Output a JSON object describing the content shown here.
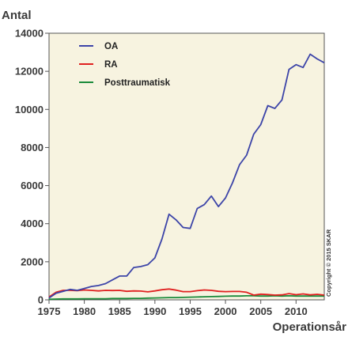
{
  "chart_data": {
    "type": "line",
    "ylabel": "Antal",
    "xlabel": "Operationsår",
    "xlim": [
      1975,
      2014
    ],
    "ylim": [
      0,
      14000
    ],
    "x_ticks": [
      1975,
      1980,
      1985,
      1990,
      1995,
      2000,
      2005,
      2010
    ],
    "y_ticks": [
      0,
      2000,
      4000,
      6000,
      8000,
      10000,
      12000,
      14000
    ],
    "legend_position": "top-left",
    "grid": false,
    "background_color": "#f7f3e0",
    "copyright": "Copyright © 2015 SKAR",
    "x": [
      1975,
      1976,
      1977,
      1978,
      1979,
      1980,
      1981,
      1982,
      1983,
      1984,
      1985,
      1986,
      1987,
      1988,
      1989,
      1990,
      1991,
      1992,
      1993,
      1994,
      1995,
      1996,
      1997,
      1998,
      1999,
      2000,
      2001,
      2002,
      2003,
      2004,
      2005,
      2006,
      2007,
      2008,
      2009,
      2010,
      2011,
      2012,
      2013,
      2014
    ],
    "series": [
      {
        "name": "OA",
        "color": "#3c44a8",
        "values": [
          100,
          350,
          450,
          550,
          500,
          600,
          700,
          750,
          850,
          1050,
          1250,
          1250,
          1700,
          1750,
          1850,
          2200,
          3200,
          4500,
          4200,
          3800,
          3750,
          4800,
          5000,
          5450,
          4900,
          5350,
          6150,
          7100,
          7600,
          8700,
          9200,
          10200,
          10050,
          10500,
          12100,
          12350,
          12200,
          12900,
          12650,
          12450
        ]
      },
      {
        "name": "RA",
        "color": "#e02020",
        "values": [
          150,
          400,
          500,
          500,
          480,
          520,
          500,
          470,
          500,
          490,
          500,
          450,
          470,
          460,
          420,
          470,
          530,
          570,
          510,
          430,
          430,
          480,
          520,
          500,
          450,
          430,
          440,
          440,
          400,
          250,
          300,
          280,
          250,
          260,
          330,
          270,
          310,
          260,
          290,
          250
        ]
      },
      {
        "name": "Posttraumatisk",
        "color": "#1a8a3a",
        "values": [
          30,
          40,
          50,
          50,
          50,
          60,
          60,
          60,
          60,
          70,
          70,
          70,
          80,
          80,
          90,
          100,
          110,
          120,
          120,
          130,
          140,
          150,
          160,
          170,
          180,
          190,
          200,
          200,
          210,
          210,
          200,
          200,
          210,
          200,
          210,
          200,
          200,
          200,
          200,
          200
        ]
      }
    ]
  }
}
